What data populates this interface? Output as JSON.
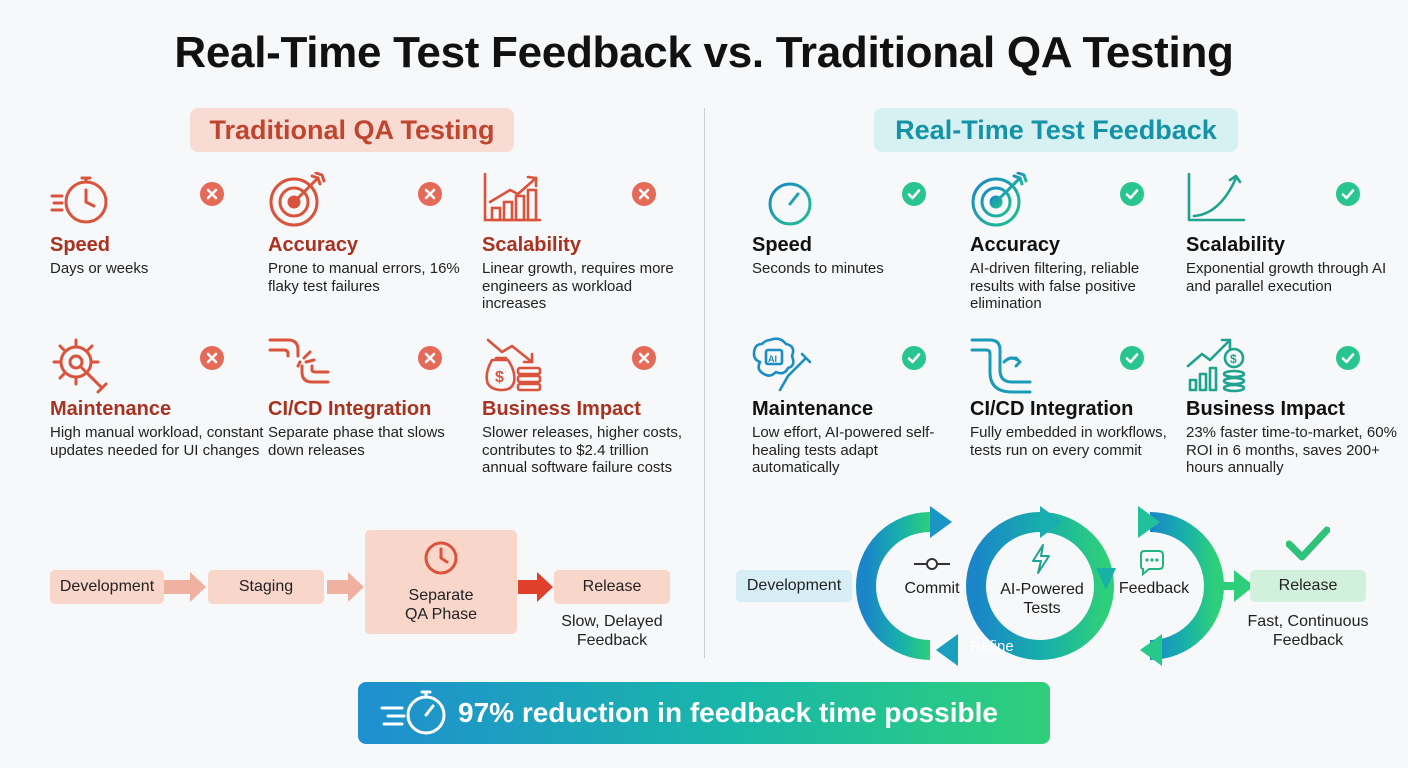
{
  "title": "Real-Time Test Feedback vs. Traditional QA Testing",
  "traditional": {
    "header": "Traditional QA Testing",
    "cards": [
      {
        "icon": "stopwatch-icon",
        "title": "Speed",
        "desc": "Days or weeks",
        "status": "cross"
      },
      {
        "icon": "target-icon",
        "title": "Accuracy",
        "desc": "Prone to manual errors, 16% flaky test failures",
        "status": "cross"
      },
      {
        "icon": "bar-chart-icon",
        "title": "Scalability",
        "desc": "Linear growth, requires more engineers as workload increases",
        "status": "cross"
      },
      {
        "icon": "gear-wrench-icon",
        "title": "Maintenance",
        "desc": "High manual workload, constant updates needed for UI changes",
        "status": "cross"
      },
      {
        "icon": "broken-pipe-icon",
        "title": "CI/CD Integration",
        "desc": "Separate phase that slows down releases",
        "status": "cross"
      },
      {
        "icon": "money-decline-icon",
        "title": "Business Impact",
        "desc": "Slower releases, higher costs, contributes to $2.4 trillion annual software failure costs",
        "status": "cross"
      }
    ],
    "flow": {
      "development": "Development",
      "staging": "Staging",
      "qa_line1": "Separate",
      "qa_line2": "QA Phase",
      "release": "Release",
      "caption_line1": "Slow, Delayed",
      "caption_line2": "Feedback"
    }
  },
  "realtime": {
    "header": "Real-Time Test Feedback",
    "cards": [
      {
        "icon": "stopwatch-icon",
        "title": "Speed",
        "desc": "Seconds to minutes",
        "status": "check"
      },
      {
        "icon": "target-icon",
        "title": "Accuracy",
        "desc": "AI-driven filtering, reliable results with false positive elimination",
        "status": "check"
      },
      {
        "icon": "growth-curve-icon",
        "title": "Scalability",
        "desc": "Exponential growth through AI and parallel execution",
        "status": "check"
      },
      {
        "icon": "ai-wrench-icon",
        "title": "Maintenance",
        "desc": "Low effort, AI-powered self-healing tests adapt automatically",
        "status": "check"
      },
      {
        "icon": "connected-pipe-icon",
        "title": "CI/CD Integration",
        "desc": "Fully embedded in workflows, tests run on every commit",
        "status": "check"
      },
      {
        "icon": "money-growth-icon",
        "title": "Business Impact",
        "desc": "23% faster time-to-market, 60% ROI in 6 months, saves 200+ hours annually",
        "status": "check"
      }
    ],
    "flow": {
      "development": "Development",
      "commit": "Commit",
      "ai_line1": "AI-Powered",
      "ai_line2": "Tests",
      "feedback": "Feedback",
      "refine": "Refine",
      "release": "Release",
      "caption_line1": "Fast, Continuous",
      "caption_line2": "Feedback"
    }
  },
  "banner": {
    "text": "97% reduction in feedback time possible",
    "icon": "fast-stopwatch-icon"
  },
  "colors": {
    "traditional": "#c0452f",
    "realtime": "#1593a6",
    "cross": "#e56a5a",
    "check": "#28c58e"
  }
}
